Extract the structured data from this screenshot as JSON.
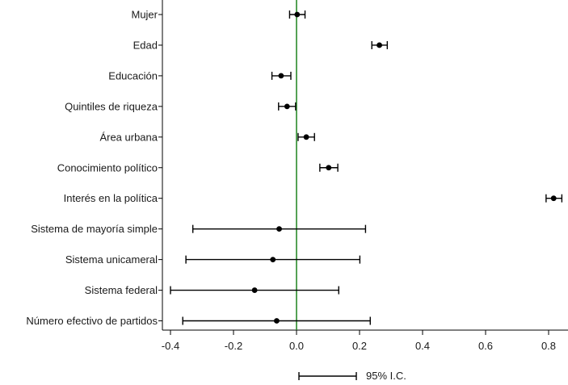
{
  "chart_data": {
    "type": "scatter",
    "title": "",
    "xlabel": "",
    "ylabel": "",
    "xlim": [
      -0.42,
      0.86
    ],
    "x_ticks": [
      -0.4,
      -0.2,
      0.0,
      0.2,
      0.4,
      0.6,
      0.8
    ],
    "x_tick_labels": [
      "-0.4",
      "-0.2",
      "0.0",
      "0.2",
      "0.4",
      "0.6",
      "0.8"
    ],
    "reference_line": 0.0,
    "reference_color": "#2a8a2a",
    "marker_color": "#000000",
    "legend": {
      "label": "95% I.C.",
      "placement": "bottom-center"
    },
    "rows": [
      {
        "label": "Mujer",
        "estimate": 0.002,
        "lower": -0.022,
        "upper": 0.027
      },
      {
        "label": "Edad",
        "estimate": 0.263,
        "lower": 0.239,
        "upper": 0.288
      },
      {
        "label": "Educación",
        "estimate": -0.049,
        "lower": -0.078,
        "upper": -0.018
      },
      {
        "label": "Quintiles de riqueza",
        "estimate": -0.03,
        "lower": -0.057,
        "upper": -0.003
      },
      {
        "label": "Área urbana",
        "estimate": 0.031,
        "lower": 0.005,
        "upper": 0.057
      },
      {
        "label": "Conocimiento político",
        "estimate": 0.102,
        "lower": 0.074,
        "upper": 0.131
      },
      {
        "label": "Interés en la política",
        "estimate": 0.816,
        "lower": 0.792,
        "upper": 0.842
      },
      {
        "label": "Sistema de mayoría simple",
        "estimate": -0.055,
        "lower": -0.329,
        "upper": 0.219
      },
      {
        "label": "Sistema unicameral",
        "estimate": -0.075,
        "lower": -0.351,
        "upper": 0.201
      },
      {
        "label": "Sistema federal",
        "estimate": -0.133,
        "lower": -0.4,
        "upper": 0.134
      },
      {
        "label": "Número efectivo de partidos",
        "estimate": -0.063,
        "lower": -0.361,
        "upper": 0.234
      }
    ]
  }
}
